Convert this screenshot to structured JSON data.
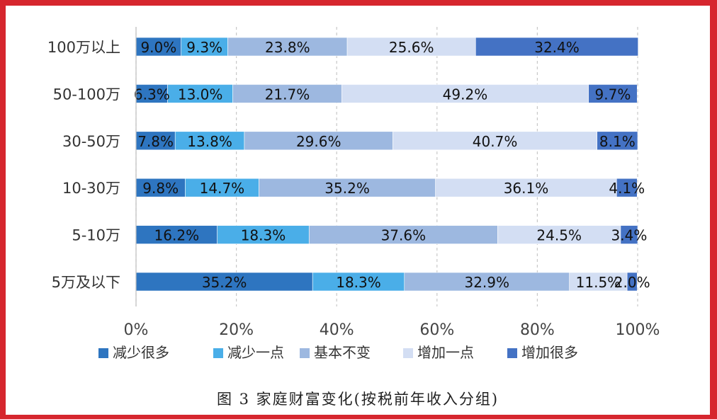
{
  "caption": "图 3 家庭财富变化(按税前年收入分组)",
  "chart_data": {
    "type": "bar",
    "orientation": "horizontal",
    "stacked": true,
    "percent": true,
    "categories": [
      "100万以上",
      "50-100万",
      "30-50万",
      "10-30万",
      "5-10万",
      "5万及以下"
    ],
    "series": [
      {
        "name": "减少很多",
        "color": "#2e75c0",
        "values": [
          9.0,
          6.3,
          7.8,
          9.8,
          16.2,
          35.2
        ]
      },
      {
        "name": "减少一点",
        "color": "#4aaee8",
        "values": [
          9.3,
          13.0,
          13.8,
          14.7,
          18.3,
          18.3
        ]
      },
      {
        "name": "基本不变",
        "color": "#9db8e0",
        "values": [
          23.8,
          21.7,
          29.6,
          35.2,
          37.6,
          32.9
        ]
      },
      {
        "name": "增加一点",
        "color": "#d3def3",
        "values": [
          25.6,
          49.2,
          40.7,
          36.1,
          24.5,
          11.5
        ]
      },
      {
        "name": "增加很多",
        "color": "#4472c4",
        "values": [
          32.4,
          9.7,
          8.1,
          4.1,
          3.4,
          2.0
        ]
      }
    ],
    "xlim": [
      0,
      100
    ],
    "xticks": [
      "0%",
      "20%",
      "40%",
      "60%",
      "80%",
      "100%"
    ],
    "grid": true,
    "legend_position": "bottom"
  }
}
